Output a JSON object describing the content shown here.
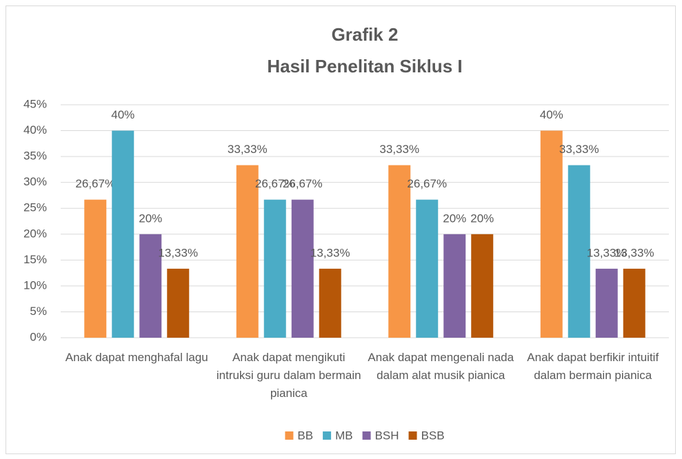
{
  "chart_data": {
    "type": "bar",
    "title": "Grafik 2",
    "subtitle": "Hasil Penelitan Siklus I",
    "categories": [
      "Anak dapat menghafal lagu",
      "Anak dapat mengikuti intruksi guru dalam bermain pianica",
      "Anak dapat mengenali nada dalam alat musik pianica",
      "Anak  dapat berfikir intuitif dalam bermain pianica"
    ],
    "series": [
      {
        "name": "BB",
        "color": "#f79646",
        "values": [
          26.67,
          33.33,
          33.33,
          40
        ],
        "value_labels": [
          "26,67%",
          "33,33%",
          "33,33%",
          "40%"
        ]
      },
      {
        "name": "MB",
        "color": "#4bacc6",
        "values": [
          40,
          26.67,
          26.67,
          33.33
        ],
        "value_labels": [
          "40%",
          "26,67%",
          "26,67%",
          "33,33%"
        ]
      },
      {
        "name": "BSH",
        "color": "#8064a2",
        "values": [
          20,
          26.67,
          20,
          13.33
        ],
        "value_labels": [
          "20%",
          "26,67%",
          "20%",
          "13,33%"
        ]
      },
      {
        "name": "BSB",
        "color": "#b65708",
        "values": [
          13.33,
          13.33,
          20,
          13.33
        ],
        "value_labels": [
          "13,33%",
          "13,33%",
          "20%",
          "13,33%"
        ]
      }
    ],
    "ylim": [
      0,
      45
    ],
    "yticks": [
      {
        "value": 0,
        "label": "0%"
      },
      {
        "value": 5,
        "label": "5%"
      },
      {
        "value": 10,
        "label": "10%"
      },
      {
        "value": 15,
        "label": "15%"
      },
      {
        "value": 20,
        "label": "20%"
      },
      {
        "value": 25,
        "label": "25%"
      },
      {
        "value": 30,
        "label": "30%"
      },
      {
        "value": 35,
        "label": "35%"
      },
      {
        "value": 40,
        "label": "40%"
      },
      {
        "value": 45,
        "label": "45%"
      }
    ],
    "grid": true,
    "legend": "bottom"
  }
}
